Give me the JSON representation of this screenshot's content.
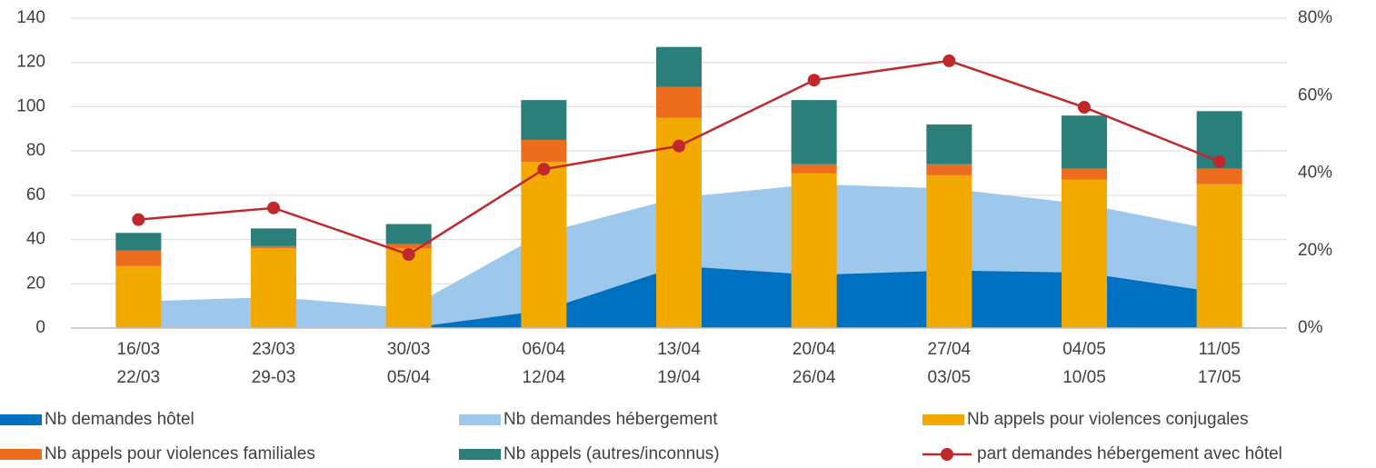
{
  "chart_data": {
    "type": "bar",
    "categories": [
      [
        "16/03",
        "22/03"
      ],
      [
        "23/03",
        "29-03"
      ],
      [
        "30/03",
        "05/04"
      ],
      [
        "06/04",
        "12/04"
      ],
      [
        "13/04",
        "19/04"
      ],
      [
        "20/04",
        "26/04"
      ],
      [
        "27/04",
        "03/05"
      ],
      [
        "04/05",
        "10/05"
      ],
      [
        "11/05",
        "17/05"
      ]
    ],
    "series": [
      {
        "name": "Nb demandes hôtel",
        "type": "area",
        "color": "#0070c0",
        "values": [
          0,
          0,
          0,
          8,
          28,
          24,
          26,
          25,
          16
        ]
      },
      {
        "name": "Nb demandes hébergement",
        "type": "area",
        "color": "#9dc8ec",
        "values": [
          12,
          14,
          9,
          43,
          59,
          65,
          63,
          56,
          44
        ]
      },
      {
        "name": "Nb appels pour violences conjugales",
        "type": "bar",
        "color": "#f2a900",
        "values": [
          28,
          36,
          36,
          75,
          95,
          70,
          69,
          67,
          65
        ]
      },
      {
        "name": "Nb appels pour violences familiales",
        "type": "bar",
        "color": "#ed6d1f",
        "values": [
          7,
          1,
          2,
          10,
          14,
          4,
          5,
          5,
          7
        ]
      },
      {
        "name": "Nb appels (autres/inconnus)",
        "type": "bar",
        "color": "#2a7f7b",
        "values": [
          8,
          8,
          9,
          18,
          18,
          29,
          18,
          24,
          26
        ]
      },
      {
        "name": "part demandes hébergement avec hôtel",
        "type": "line",
        "axis": "y2",
        "color": "#c0282b",
        "values": [
          28,
          31,
          19,
          41,
          47,
          64,
          69,
          57,
          43
        ]
      }
    ],
    "ylim": [
      0,
      140
    ],
    "yticks": [
      0,
      20,
      40,
      60,
      80,
      100,
      120,
      140
    ],
    "y2lim": [
      0,
      80
    ],
    "y2ticks": [
      {
        "value": 0,
        "label": "0%"
      },
      {
        "value": 20,
        "label": "20%"
      },
      {
        "value": 40,
        "label": "40%"
      },
      {
        "value": 60,
        "label": "60%"
      },
      {
        "value": 80,
        "label": "80%"
      }
    ],
    "grid": true
  }
}
